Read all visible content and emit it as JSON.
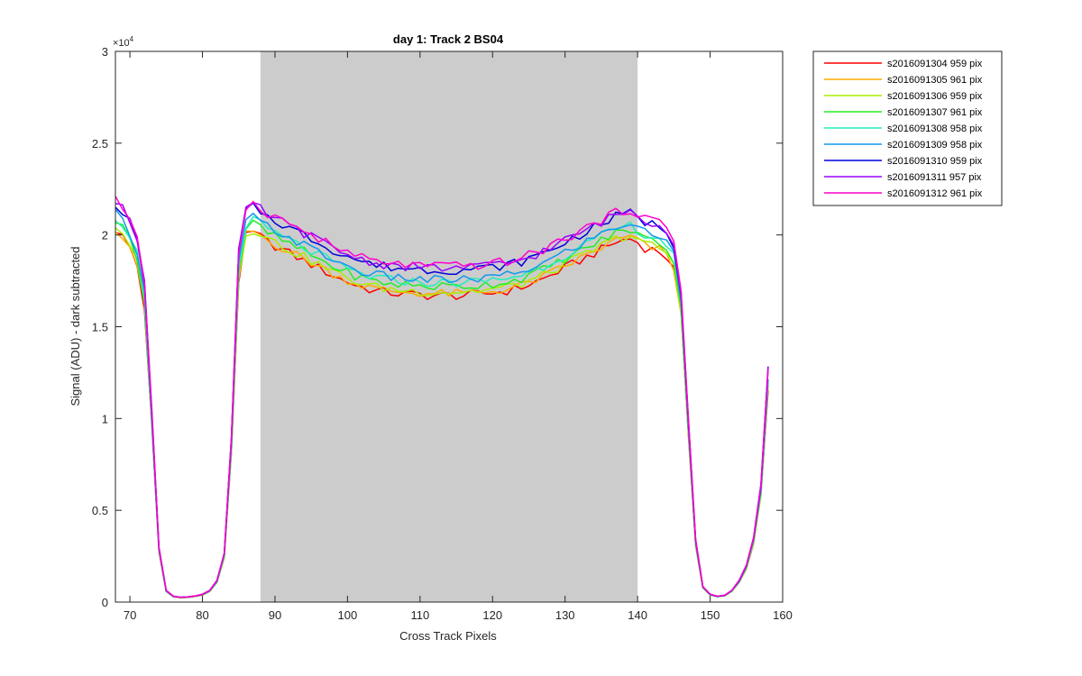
{
  "chart_data": {
    "type": "line",
    "title": "day 1: Track 2  BS04",
    "xlabel": "Cross Track Pixels",
    "ylabel": "Signal (ADU) - dark subtracted",
    "y_exponent_label": "×10",
    "y_exponent_power": "4",
    "xlim": [
      68,
      160
    ],
    "ylim": [
      0,
      30000
    ],
    "x_ticks": [
      70,
      80,
      90,
      100,
      110,
      120,
      130,
      140,
      150,
      160
    ],
    "y_ticks": [
      0,
      5000,
      10000,
      15000,
      20000,
      25000,
      30000
    ],
    "y_tick_labels": [
      "0",
      "0.5",
      "1",
      "1.5",
      "2",
      "2.5",
      "3"
    ],
    "shaded_region": {
      "x": [
        88,
        140
      ],
      "color": "#cccccc"
    },
    "grid": false,
    "legend_position": "outside-right-top",
    "series": [
      {
        "name": "s2016091304 959 pix",
        "color": "#ff0000"
      },
      {
        "name": "s2016091305 961 pix",
        "color": "#ffaa00"
      },
      {
        "name": "s2016091306 959 pix",
        "color": "#aaee00"
      },
      {
        "name": "s2016091307 961 pix",
        "color": "#22ee22"
      },
      {
        "name": "s2016091308 958 pix",
        "color": "#22eebb"
      },
      {
        "name": "s2016091309 958 pix",
        "color": "#1199ee"
      },
      {
        "name": "s2016091310 959 pix",
        "color": "#0000dd"
      },
      {
        "name": "s2016091311 957 pix",
        "color": "#9900ff"
      },
      {
        "name": "s2016091312 961 pix",
        "color": "#ff00cc"
      }
    ],
    "x": [
      68,
      69,
      70,
      71,
      72,
      73,
      74,
      75,
      76,
      77,
      78,
      79,
      80,
      81,
      82,
      83,
      84,
      85,
      86,
      87,
      88,
      89,
      90,
      91,
      92,
      93,
      94,
      95,
      96,
      97,
      98,
      99,
      100,
      101,
      102,
      103,
      104,
      105,
      106,
      107,
      108,
      109,
      110,
      111,
      112,
      113,
      114,
      115,
      116,
      117,
      118,
      119,
      120,
      121,
      122,
      123,
      124,
      125,
      126,
      127,
      128,
      129,
      130,
      131,
      132,
      133,
      134,
      135,
      136,
      137,
      138,
      139,
      140,
      141,
      142,
      143,
      144,
      145,
      146,
      147,
      148,
      149,
      150,
      151,
      152,
      153,
      154,
      155,
      156,
      157,
      158,
      159,
      160
    ],
    "base_profile": [
      20800,
      20400,
      19800,
      18800,
      16500,
      10000,
      2800,
      600,
      300,
      250,
      270,
      320,
      400,
      600,
      1100,
      2500,
      8500,
      18000,
      20400,
      20600,
      20400,
      20100,
      19900,
      19700,
      19500,
      19300,
      19100,
      18900,
      18700,
      18500,
      18300,
      18100,
      17950,
      17800,
      17650,
      17550,
      17450,
      17400,
      17350,
      17300,
      17300,
      17250,
      17250,
      17200,
      17200,
      17200,
      17200,
      17200,
      17200,
      17250,
      17250,
      17300,
      17350,
      17400,
      17450,
      17550,
      17650,
      17800,
      17950,
      18100,
      18300,
      18500,
      18700,
      18900,
      19100,
      19300,
      19500,
      19700,
      19900,
      20100,
      20200,
      20300,
      20100,
      19800,
      19700,
      19600,
      19300,
      18600,
      16000,
      9500,
      3200,
      800,
      400,
      300,
      350,
      600,
      1100,
      1900,
      3300,
      6000,
      12000
    ],
    "series_offsets": [
      -500,
      -400,
      -300,
      0,
      200,
      350,
      900,
      1000,
      1100
    ]
  }
}
